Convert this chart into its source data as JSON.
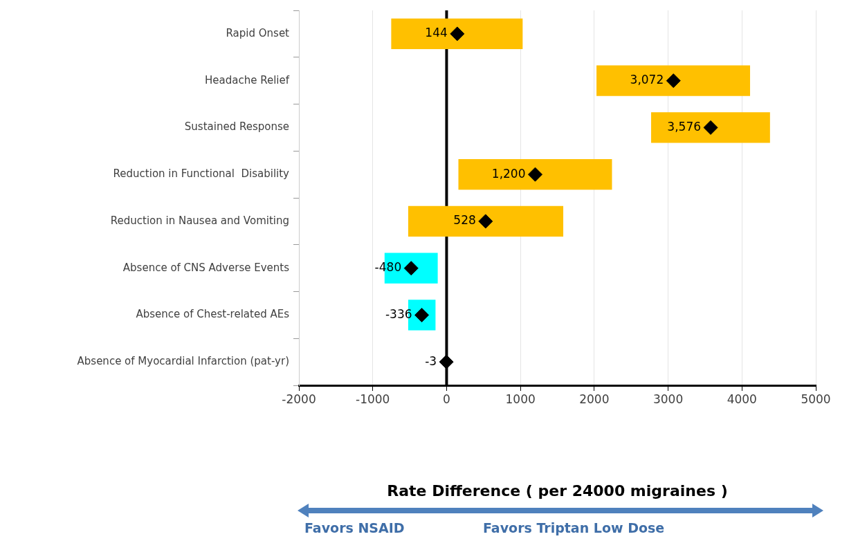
{
  "chart_data": {
    "type": "bar",
    "orientation": "horizontal",
    "xlabel": "Rate Difference ( per 24000 migraines )",
    "categories": [
      "Rapid Onset",
      "Headache Relief",
      "Sustained Response",
      "Reduction in Functional  Disability",
      "Reduction in Nausea and Vomiting",
      "Absence of CNS Adverse Events",
      "Absence of Chest-related AEs",
      "Absence of Myocardial Infarction (pat-yr)"
    ],
    "series": [
      {
        "colors": [
          "#ffc000",
          "#ffc000",
          "#ffc000",
          "#ffc000",
          "#ffc000",
          "#00ffff",
          "#00ffff",
          null
        ],
        "base": [
          -750,
          2030,
          2770,
          160,
          -520,
          -840,
          -520,
          null
        ],
        "values": [
          1780,
          2080,
          1610,
          2080,
          2100,
          720,
          370,
          null
        ]
      },
      {
        "type": "scatter",
        "color": "#000000",
        "marker": "diamond",
        "x": [
          "Rapid Onset",
          "Headache Relief",
          "Sustained Response",
          "Reduction in Functional  Disability",
          "Reduction in Nausea and Vomiting",
          "Absence of CNS Adverse Events",
          "Absence of Chest-related AEs",
          "Absence of Myocardial Infarction (pat-yr)"
        ],
        "values": [
          144,
          3072,
          3576,
          1200,
          528,
          -480,
          -336,
          -3
        ],
        "value_labels": [
          "144",
          "3,072",
          "3,576",
          "1,200",
          "528",
          "-480",
          "-336",
          "-3"
        ]
      }
    ],
    "xlim": [
      -2000,
      5000
    ],
    "xticks": [
      -2000,
      -1000,
      0,
      1000,
      2000,
      3000,
      4000,
      5000
    ],
    "grid": "x",
    "legend": false,
    "ref_lines": [
      {
        "axis": "x",
        "value": 0,
        "color": "#000000"
      }
    ],
    "annotations": [
      "Favors NSAID",
      "Favors Triptan Low Dose"
    ]
  }
}
